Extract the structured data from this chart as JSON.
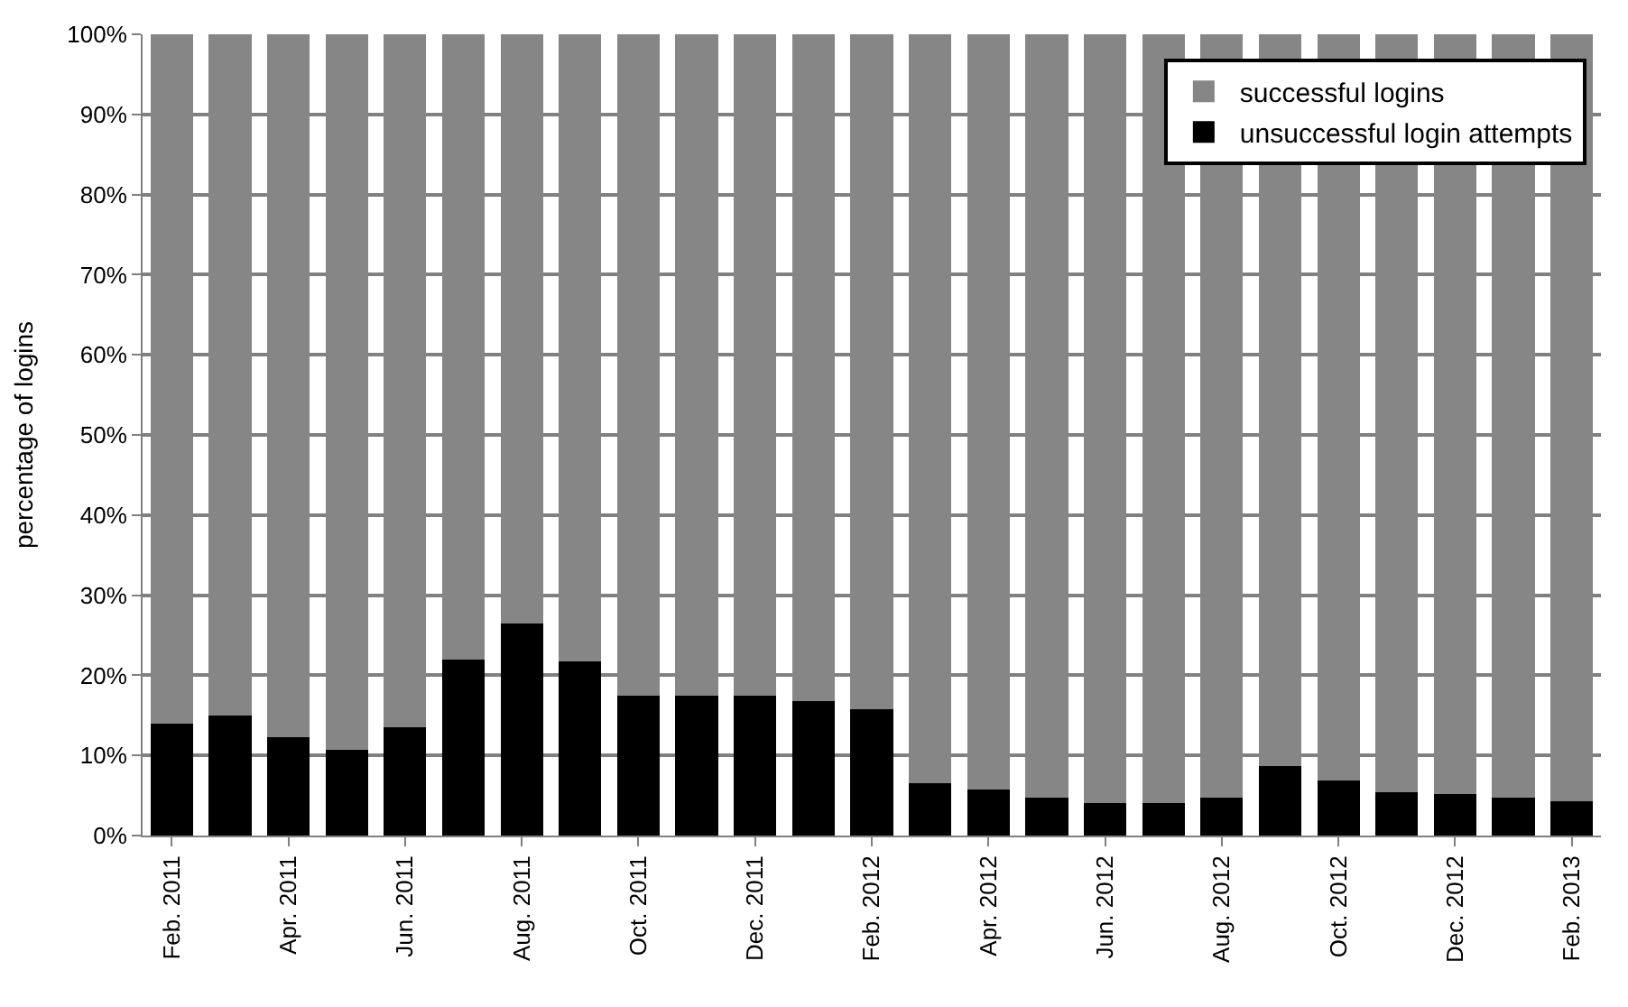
{
  "chart_data": {
    "type": "bar",
    "stacked": true,
    "ylabel": "percentage of logins",
    "categories": [
      "Feb. 2011",
      null,
      "Apr. 2011",
      null,
      "Jun. 2011",
      null,
      "Aug. 2011",
      null,
      "Oct. 2011",
      null,
      "Dec. 2011",
      null,
      "Feb. 2012",
      null,
      "Apr. 2012",
      null,
      "Jun. 2012",
      null,
      "Aug. 2012",
      null,
      "Oct. 2012",
      null,
      "Dec. 2012",
      null,
      "Feb. 2013"
    ],
    "series": [
      {
        "name": "unsuccessful login attempts",
        "color": "#000000",
        "values": [
          14,
          15,
          12.3,
          10.7,
          13.5,
          22,
          26.5,
          21.7,
          17.5,
          17.5,
          17.5,
          16.8,
          15.8,
          6.5,
          5.8,
          4.7,
          4.1,
          4.1,
          4.7,
          8.7,
          6.9,
          5.4,
          5.2,
          4.7,
          4.3
        ]
      },
      {
        "name": "successful logins",
        "color": "#868686",
        "values": [
          86,
          85,
          87.7,
          89.3,
          86.5,
          78,
          73.5,
          78.3,
          82.5,
          82.5,
          82.5,
          83.2,
          84.2,
          93.5,
          94.2,
          95.3,
          95.9,
          95.9,
          95.3,
          91.3,
          93.1,
          94.6,
          94.8,
          95.3,
          95.7
        ]
      }
    ],
    "ylim": [
      0,
      100
    ],
    "yticks": [
      {
        "value": 0,
        "label": "0%"
      },
      {
        "value": 10,
        "label": "10%"
      },
      {
        "value": 20,
        "label": "20%"
      },
      {
        "value": 30,
        "label": "30%"
      },
      {
        "value": 40,
        "label": "40%"
      },
      {
        "value": 50,
        "label": "50%"
      },
      {
        "value": 60,
        "label": "60%"
      },
      {
        "value": 70,
        "label": "70%"
      },
      {
        "value": 80,
        "label": "80%"
      },
      {
        "value": 90,
        "label": "90%"
      },
      {
        "value": 100,
        "label": "100%"
      }
    ],
    "grid": "y",
    "legend": "top right"
  }
}
